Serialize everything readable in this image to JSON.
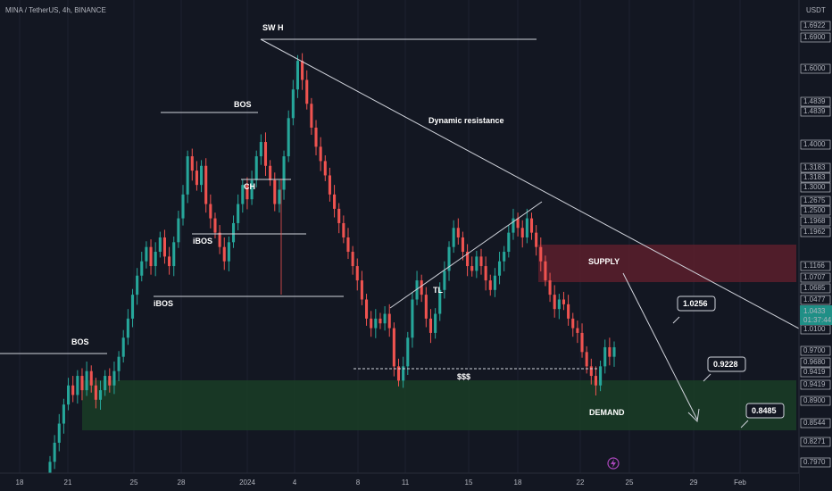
{
  "header": {
    "symbol_line": "MINA / TetherUS, 4h, BINANCE",
    "currency": "USDT"
  },
  "colors": {
    "background": "#131722",
    "up": "#26a69a",
    "down": "#ef5350",
    "supply_zone": "#5c1f2b",
    "demand_zone": "#1a3b26",
    "line": "#d1d4dc",
    "current_price_badge": "#1f8f86"
  },
  "chart_data": {
    "type": "candlestick",
    "ylim": [
      0.78,
      1.73
    ],
    "x_ticks": [
      "18",
      "21",
      "25",
      "28",
      "2024",
      "4",
      "8",
      "11",
      "15",
      "18",
      "22",
      "25",
      "29",
      "Feb"
    ],
    "y_ticks": [
      "1.6922",
      "1.6900",
      "1.6000",
      "1.4839",
      "1.4839",
      "1.4000",
      "1.3183",
      "1.3183",
      "1.3000",
      "1.2675",
      "1.2500",
      "1.1968",
      "1.1962",
      "1.1166",
      "1.0707",
      "1.0685",
      "1.0477",
      "1.0433",
      "01:37:44",
      "1.0100",
      "0.9700",
      "0.9680",
      "0.9419",
      "0.9419",
      "0.8900",
      "0.8544",
      "0.8271",
      "0.7970"
    ],
    "current_price": 1.0433,
    "countdown": "01:37:44",
    "closes": [
      0.8,
      0.84,
      0.88,
      0.92,
      0.96,
      0.94,
      0.98,
      0.95,
      0.99,
      0.96,
      0.93,
      0.95,
      0.98,
      0.96,
      0.99,
      1.02,
      1.06,
      1.1,
      1.15,
      1.19,
      1.22,
      1.25,
      1.21,
      1.24,
      1.27,
      1.23,
      1.21,
      1.26,
      1.31,
      1.36,
      1.44,
      1.41,
      1.38,
      1.42,
      1.34,
      1.31,
      1.28,
      1.25,
      1.22,
      1.26,
      1.3,
      1.34,
      1.38,
      1.35,
      1.39,
      1.44,
      1.47,
      1.42,
      1.39,
      1.34,
      1.37,
      1.44,
      1.52,
      1.58,
      1.64,
      1.6,
      1.55,
      1.5,
      1.46,
      1.43,
      1.4,
      1.36,
      1.33,
      1.3,
      1.27,
      1.24,
      1.21,
      1.18,
      1.14,
      1.1,
      1.08,
      1.1,
      1.09,
      1.11,
      1.08,
      1.0,
      0.97,
      1.0,
      1.06,
      1.14,
      1.18,
      1.15,
      1.1,
      1.07,
      1.11,
      1.16,
      1.2,
      1.25,
      1.29,
      1.27,
      1.24,
      1.21,
      1.2,
      1.23,
      1.21,
      1.18,
      1.16,
      1.19,
      1.22,
      1.24,
      1.28,
      1.31,
      1.29,
      1.27,
      1.31,
      1.28,
      1.25,
      1.22,
      1.18,
      1.15,
      1.12,
      1.14,
      1.13,
      1.1,
      1.08,
      1.07,
      1.03,
      1.0,
      0.98,
      0.96,
      1.0,
      1.04,
      1.02,
      1.04
    ],
    "labels": {
      "sw_h": "SW H",
      "bos_top": "BOS",
      "bos_left": "BOS",
      "ch": "CH",
      "ibos_upper": "iBOS",
      "ibos_lower": "iBOS",
      "dynamic_resistance": "Dynamic resistance",
      "tl": "TL",
      "liquidity": "$$$",
      "supply": "SUPPLY",
      "demand": "DEMAND"
    },
    "targets": [
      "1.0256",
      "0.9228",
      "0.8485"
    ]
  }
}
